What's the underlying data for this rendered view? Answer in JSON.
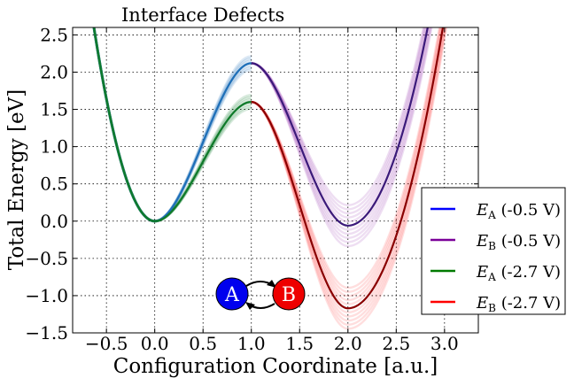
{
  "chart_data": {
    "type": "line",
    "title": "Interface Defects",
    "xlabel": "Configuration Coordinate [a.u.]",
    "ylabel": "Total Energy [eV]",
    "xlim": [
      -0.85,
      3.35
    ],
    "ylim": [
      -1.5,
      2.6
    ],
    "xticks": [
      -0.5,
      0.0,
      0.5,
      1.0,
      1.5,
      2.0,
      2.5,
      3.0
    ],
    "xtick_labels": [
      "−0.5",
      "0.0",
      "0.5",
      "1.0",
      "1.5",
      "2.0",
      "2.5",
      "3.0"
    ],
    "yticks": [
      -1.5,
      -1.0,
      -0.5,
      0.0,
      0.5,
      1.0,
      1.5,
      2.0,
      2.5
    ],
    "ytick_labels": [
      "−1.5",
      "−1.0",
      "−0.5",
      "0.0",
      "0.5",
      "1.0",
      "1.5",
      "2.0",
      "2.5"
    ],
    "grid": true,
    "legend_position": "right",
    "series": [
      {
        "name": "E_A (-0.5 V)",
        "legend_main": "E",
        "legend_sub": "A",
        "legend_tail": " (-0.5 V)",
        "color": "#0000ff",
        "well_min": 0.0,
        "barrier": 2.12,
        "peak_color": "#1e6fb8",
        "segment": "A"
      },
      {
        "name": "E_B (-0.5 V)",
        "legend_main": "E",
        "legend_sub": "B",
        "legend_tail": " (-0.5 V)",
        "color": "#7a0099",
        "well_min": -0.06,
        "barrier": 2.12,
        "peak_color": "#3b1a7a",
        "segment": "B"
      },
      {
        "name": "E_A (-2.7 V)",
        "legend_main": "E",
        "legend_sub": "A",
        "legend_tail": " (-2.7 V)",
        "color": "#007a00",
        "well_min": 0.0,
        "barrier": 1.6,
        "peak_color": "#0f7a2a",
        "segment": "A"
      },
      {
        "name": "E_B (-2.7 V)",
        "legend_main": "E",
        "legend_sub": "B",
        "legend_tail": " (-2.7 V)",
        "color": "#ff0000",
        "well_min": -1.17,
        "barrier": 1.6,
        "peak_color": "#8a0000",
        "segment": "B"
      }
    ],
    "annotation": {
      "state_a": "A",
      "state_b": "B",
      "color_a": "#0000ee",
      "color_b": "#ee0000"
    }
  }
}
